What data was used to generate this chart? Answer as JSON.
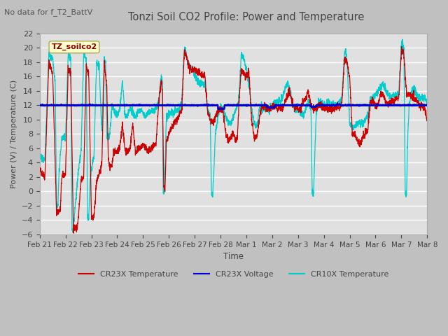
{
  "title": "Tonzi Soil CO2 Profile: Power and Temperature",
  "subtitle": "No data for f_T2_BattV",
  "ylabel": "Power (V) / Temperature (C)",
  "xlabel": "Time",
  "ylim": [
    -6,
    22
  ],
  "yticks": [
    -6,
    -4,
    -2,
    0,
    2,
    4,
    6,
    8,
    10,
    12,
    14,
    16,
    18,
    20,
    22
  ],
  "xtick_labels": [
    "Feb 21",
    "Feb 22",
    "Feb 23",
    "Feb 24",
    "Feb 25",
    "Feb 26",
    "Feb 27",
    "Feb 28",
    "Mar 1",
    "Mar 2",
    "Mar 3",
    "Mar 4",
    "Mar 5",
    "Mar 6",
    "Mar 7",
    "Mar 8"
  ],
  "bg_color": "#e0e0e0",
  "grid_color": "#ffffff",
  "cr23x_temp_color": "#cc0000",
  "cr23x_volt_color": "#0000cc",
  "cr10x_temp_color": "#00cccc",
  "legend_box_color": "#ffffcc",
  "legend_text_color": "#8b0000",
  "legend_label": "TZ_soilco2",
  "fig_bg": "#c8c8c8"
}
